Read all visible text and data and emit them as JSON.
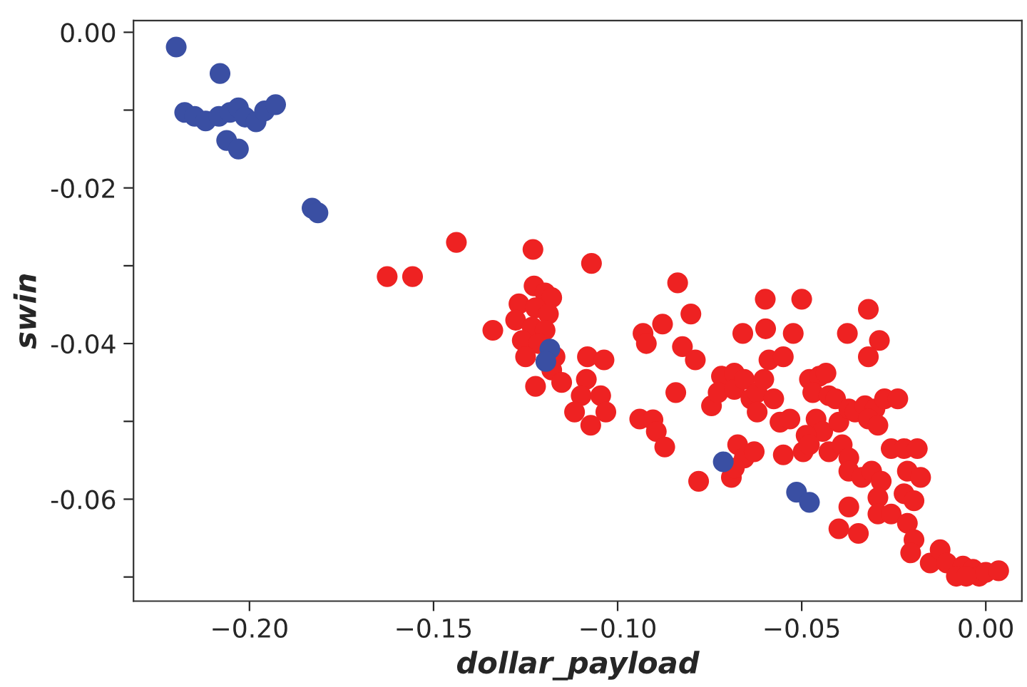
{
  "chart_data": {
    "type": "scatter",
    "xlabel": "dollar_payload",
    "ylabel": "swin",
    "xlim": [
      -0.2315,
      0.0098
    ],
    "ylim": [
      -0.0731,
      0.0015
    ],
    "xticks": [
      {
        "value": -0.2,
        "label": "−0.20"
      },
      {
        "value": -0.15,
        "label": "−0.15"
      },
      {
        "value": -0.1,
        "label": "−0.10"
      },
      {
        "value": -0.05,
        "label": "−0.05"
      },
      {
        "value": 0.0,
        "label": "0.00"
      }
    ],
    "yticks": [
      {
        "value": 0.0,
        "label": "0.00"
      },
      {
        "value": -0.01,
        "label": null
      },
      {
        "value": -0.02,
        "label": "-0.02"
      },
      {
        "value": -0.03,
        "label": null
      },
      {
        "value": -0.04,
        "label": "-0.04"
      },
      {
        "value": -0.05,
        "label": null
      },
      {
        "value": -0.06,
        "label": "-0.06"
      },
      {
        "value": -0.07,
        "label": null
      }
    ],
    "grid": false,
    "marker": "circle",
    "series": [
      {
        "color": "#ee2222",
        "x": [
          -0.1626,
          -0.1557,
          -0.1438,
          -0.123,
          -0.1071,
          -0.1339,
          -0.1227,
          -0.1197,
          -0.1179,
          -0.1268,
          -0.1223,
          -0.1188,
          -0.1277,
          -0.1232,
          -0.1197,
          -0.1259,
          -0.1215,
          -0.125,
          -0.117,
          -0.1179,
          -0.1223,
          -0.1152,
          -0.1082,
          -0.1037,
          -0.1085,
          -0.1099,
          -0.1117,
          -0.1073,
          -0.1046,
          -0.1032,
          -0.0931,
          -0.0922,
          -0.0878,
          -0.0837,
          -0.0801,
          -0.0824,
          -0.0789,
          -0.0842,
          -0.094,
          -0.0904,
          -0.0895,
          -0.0872,
          -0.078,
          -0.0745,
          -0.0718,
          -0.0727,
          -0.0683,
          -0.0683,
          -0.0656,
          -0.0638,
          -0.0621,
          -0.0603,
          -0.066,
          -0.0599,
          -0.0598,
          -0.0589,
          -0.055,
          -0.0523,
          -0.05,
          -0.0576,
          -0.0621,
          -0.0559,
          -0.0532,
          -0.0674,
          -0.0656,
          -0.0629,
          -0.0691,
          -0.0683,
          -0.055,
          -0.0496,
          -0.0479,
          -0.0452,
          -0.0434,
          -0.047,
          -0.0426,
          -0.0408,
          -0.0461,
          -0.0443,
          -0.0488,
          -0.0479,
          -0.0426,
          -0.039,
          -0.0372,
          -0.0399,
          -0.0372,
          -0.0355,
          -0.0328,
          -0.0301,
          -0.0275,
          -0.0239,
          -0.0319,
          -0.0293,
          -0.0376,
          -0.0319,
          -0.0289,
          -0.0319,
          -0.0372,
          -0.0337,
          -0.031,
          -0.0284,
          -0.0257,
          -0.0222,
          -0.0186,
          -0.0293,
          -0.0293,
          -0.0257,
          -0.0213,
          -0.0177,
          -0.0222,
          -0.0195,
          -0.0372,
          -0.0399,
          -0.0346,
          -0.0213,
          -0.0195,
          -0.0204,
          -0.0151,
          -0.0124,
          -0.0106,
          -0.0062,
          -0.0035,
          -0.0018,
          -0.008,
          -0.0053,
          0.0,
          0.0035
        ],
        "values": [
          -0.0314,
          -0.0314,
          -0.027,
          -0.0279,
          -0.0297,
          -0.0383,
          -0.0326,
          -0.0335,
          -0.0341,
          -0.0349,
          -0.0354,
          -0.0362,
          -0.037,
          -0.0379,
          -0.0383,
          -0.0396,
          -0.04,
          -0.0417,
          -0.0417,
          -0.0434,
          -0.0455,
          -0.045,
          -0.0417,
          -0.0421,
          -0.0446,
          -0.0467,
          -0.0488,
          -0.0505,
          -0.0467,
          -0.0488,
          -0.0387,
          -0.04,
          -0.0375,
          -0.0322,
          -0.0362,
          -0.0404,
          -0.0421,
          -0.0463,
          -0.0497,
          -0.0498,
          -0.0513,
          -0.0533,
          -0.0577,
          -0.048,
          -0.0442,
          -0.0463,
          -0.0438,
          -0.0459,
          -0.0446,
          -0.0471,
          -0.0463,
          -0.0446,
          -0.0387,
          -0.0343,
          -0.0381,
          -0.0421,
          -0.0417,
          -0.0387,
          -0.0343,
          -0.0471,
          -0.0488,
          -0.0501,
          -0.0497,
          -0.053,
          -0.0547,
          -0.0539,
          -0.0572,
          -0.056,
          -0.0543,
          -0.0539,
          -0.0446,
          -0.0442,
          -0.0438,
          -0.0463,
          -0.0467,
          -0.0471,
          -0.0497,
          -0.0513,
          -0.0518,
          -0.053,
          -0.0539,
          -0.053,
          -0.0547,
          -0.0501,
          -0.0484,
          -0.0488,
          -0.048,
          -0.0484,
          -0.0471,
          -0.0471,
          -0.0497,
          -0.0505,
          -0.0387,
          -0.0356,
          -0.0396,
          -0.0417,
          -0.0564,
          -0.0572,
          -0.0564,
          -0.0577,
          -0.0535,
          -0.0535,
          -0.0535,
          -0.0598,
          -0.0619,
          -0.0619,
          -0.0564,
          -0.0572,
          -0.0593,
          -0.0602,
          -0.061,
          -0.0638,
          -0.0644,
          -0.0631,
          -0.0652,
          -0.0669,
          -0.0682,
          -0.0665,
          -0.0682,
          -0.0686,
          -0.069,
          -0.0699,
          -0.0699,
          -0.0699,
          -0.0694,
          -0.0692
        ]
      },
      {
        "color": "#3a4fa3",
        "x": [
          -0.2199,
          -0.208,
          -0.2176,
          -0.2149,
          -0.2119,
          -0.2083,
          -0.2053,
          -0.203,
          -0.2012,
          -0.1982,
          -0.1959,
          -0.1929,
          -0.2062,
          -0.203,
          -0.183,
          -0.1814,
          -0.1184,
          -0.1195,
          -0.0713,
          -0.0514,
          -0.0479
        ],
        "values": [
          -0.0019,
          -0.0053,
          -0.0103,
          -0.0108,
          -0.0114,
          -0.0108,
          -0.0103,
          -0.0097,
          -0.0109,
          -0.0115,
          -0.0101,
          -0.0093,
          -0.0139,
          -0.015,
          -0.0226,
          -0.0232,
          -0.0407,
          -0.0423,
          -0.0552,
          -0.0591,
          -0.0604
        ]
      }
    ]
  }
}
